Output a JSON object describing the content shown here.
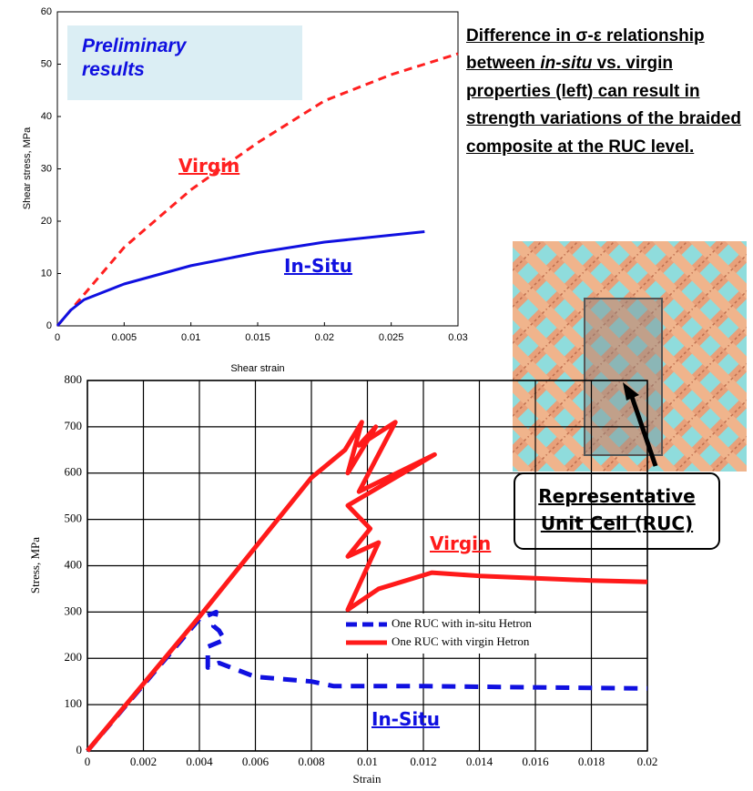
{
  "chart_data": [
    {
      "type": "line",
      "xlabel": "Shear strain",
      "ylabel": "Shear stress, MPa",
      "xlim": [
        0,
        0.03
      ],
      "xticks": [
        0,
        0.005,
        0.01,
        0.015,
        0.02,
        0.025,
        0.03
      ],
      "ylim": [
        0,
        60
      ],
      "yticks": [
        0,
        10,
        20,
        30,
        40,
        50,
        60
      ],
      "grid": false,
      "series": [
        {
          "name": "Virgin",
          "color": "#ff2020",
          "dashed": true,
          "x": [
            0,
            0.002,
            0.005,
            0.01,
            0.015,
            0.02,
            0.025,
            0.03
          ],
          "values": [
            0,
            6,
            15,
            26,
            35,
            43,
            48,
            52
          ]
        },
        {
          "name": "In-Situ",
          "color": "#1010e0",
          "dashed": false,
          "x": [
            0,
            0.001,
            0.002,
            0.005,
            0.01,
            0.015,
            0.02,
            0.0275
          ],
          "values": [
            0,
            3,
            5,
            8,
            11.5,
            14,
            16,
            18
          ]
        }
      ],
      "annotations": [
        "Preliminary results",
        "Virgin",
        "In-Situ"
      ]
    },
    {
      "type": "line",
      "xlabel": "Strain",
      "ylabel": "Stress, MPa",
      "xlim": [
        0,
        0.02
      ],
      "xticks": [
        0,
        0.002,
        0.004,
        0.006,
        0.008,
        0.01,
        0.012,
        0.014,
        0.016,
        0.018,
        0.02
      ],
      "ylim": [
        0,
        800
      ],
      "yticks": [
        0,
        100,
        200,
        300,
        400,
        500,
        600,
        700,
        800
      ],
      "grid": true,
      "legend": "center",
      "series": [
        {
          "name": "One RUC with in-situ Hetron",
          "color": "#1010e0",
          "dashed": true,
          "x": [
            0,
            0.004,
            0.0046,
            0.0045,
            0.0047,
            0.0049,
            0.0043,
            0.0043,
            0.0047,
            0.006,
            0.008,
            0.0088,
            0.01,
            0.012,
            0.015,
            0.02
          ],
          "values": [
            0,
            285,
            300,
            270,
            260,
            240,
            225,
            180,
            190,
            160,
            150,
            140,
            140,
            140,
            138,
            135
          ]
        },
        {
          "name": "One RUC with virgin Hetron",
          "color": "#ff1a1a",
          "dashed": false,
          "x": [
            0,
            0.004,
            0.008,
            0.0092,
            0.0098,
            0.0093,
            0.0103,
            0.0097,
            0.011,
            0.0097,
            0.0124,
            0.0093,
            0.0101,
            0.0093,
            0.0104,
            0.0093,
            0.0104,
            0.0123,
            0.014,
            0.016,
            0.018,
            0.02
          ],
          "values": [
            0,
            290,
            590,
            650,
            710,
            600,
            700,
            660,
            710,
            560,
            640,
            530,
            480,
            420,
            450,
            305,
            350,
            385,
            378,
            373,
            368,
            365
          ]
        }
      ],
      "annotations": [
        "Virgin",
        "In-Situ"
      ]
    }
  ],
  "text": {
    "paragraph": [
      "Difference in σ-ε relationship between ",
      "in-situ",
      " vs. virgin properties (left) can result in strength variations of the braided composite at the RUC level."
    ],
    "image_label": "Representative Unit Cell (RUC)"
  }
}
